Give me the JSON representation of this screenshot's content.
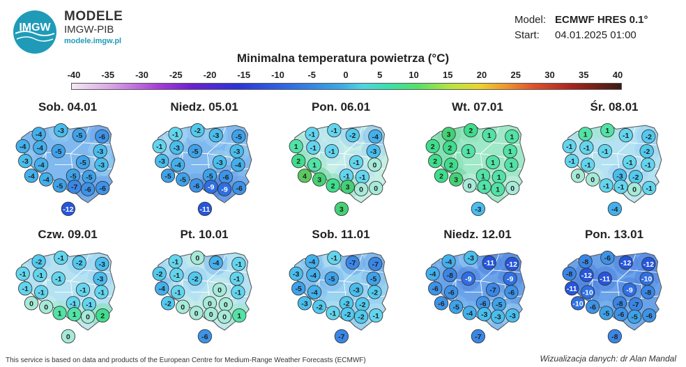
{
  "brand": {
    "name": "MODELE",
    "org": "IMGW-PIB",
    "url": "modele.imgw.pl",
    "logo_text": "IMGW"
  },
  "model": {
    "model_label": "Model:",
    "model_value": "ECMWF HRES 0.1°",
    "start_label": "Start:",
    "start_value": "04.01.2025 01:00"
  },
  "title": "Minimalna temperatura powietrza (°C)",
  "scale": {
    "min": -40,
    "max": 40,
    "ticks": [
      "-40",
      "-35",
      "-30",
      "-25",
      "-20",
      "-15",
      "-10",
      "-5",
      "0",
      "5",
      "10",
      "15",
      "20",
      "25",
      "30",
      "35",
      "40"
    ]
  },
  "days": [
    {
      "label": "Sob. 04.01",
      "values": [
        "-4",
        "-3",
        "-5",
        "-6",
        "-4",
        "-4",
        "-5",
        "-3",
        "-3",
        "-4",
        "-5",
        "-3",
        "-4",
        "-4",
        "-5",
        "-5",
        "-5",
        "-7",
        "-6",
        "-6",
        "-12"
      ]
    },
    {
      "label": "Niedz. 05.01",
      "values": [
        "-1",
        "-2",
        "-3",
        "-5",
        "-1",
        "-3",
        "-5",
        "-3",
        "-3",
        "-4",
        "-3",
        "-4",
        "-5",
        "-5",
        "-5",
        "-6",
        "-6",
        "-9",
        "-9",
        "-6",
        "-11"
      ]
    },
    {
      "label": "Pon. 06.01",
      "values": [
        "-1",
        "-1",
        "-2",
        "-4",
        "1",
        "-1",
        "-1",
        "-3",
        "2",
        "1",
        "-1",
        "0",
        "4",
        "3",
        "-1",
        "-1",
        "2",
        "3",
        "0",
        "0",
        "3"
      ]
    },
    {
      "label": "Wt. 07.01",
      "values": [
        "3",
        "2",
        "1",
        "1",
        "2",
        "2",
        "1",
        "1",
        "2",
        "2",
        "1",
        "1",
        "2",
        "3",
        "1",
        "1",
        "0",
        "1",
        "1",
        "0",
        "-3"
      ]
    },
    {
      "label": "Śr. 08.01",
      "values": [
        "1",
        "1",
        "-1",
        "-2",
        "-1",
        "-1",
        "-1",
        "-2",
        "-1",
        "-1",
        "-1",
        "-1",
        "0",
        "0",
        "-3",
        "-2",
        "-1",
        "-1",
        "0",
        "-1",
        "-4"
      ]
    },
    {
      "label": "Czw. 09.01",
      "values": [
        "-2",
        "-1",
        "-2",
        "-3",
        "-1",
        "-1",
        "-1",
        "-3",
        "-1",
        "-1",
        "-1",
        "-1",
        "0",
        "0",
        "-1",
        "-1",
        "1",
        "1",
        "0",
        "2",
        "0"
      ]
    },
    {
      "label": "Pt. 10.01",
      "values": [
        "-1",
        "0",
        "-4",
        "-1",
        "-2",
        "-1",
        "-2",
        "-1",
        "-4",
        "-1",
        "0",
        "-1",
        "-2",
        "0",
        "0",
        "0",
        "0",
        "0",
        "0",
        "1",
        "-6"
      ]
    },
    {
      "label": "Sob. 11.01",
      "values": [
        "-4",
        "-1",
        "-7",
        "-7",
        "-3",
        "-4",
        "-5",
        "-5",
        "-5",
        "-4",
        "-3",
        "-2",
        "-3",
        "-2",
        "-2",
        "-2",
        "-1",
        "-2",
        "-2",
        "-1",
        "-7"
      ]
    },
    {
      "label": "Niedz. 12.01",
      "values": [
        "-4",
        "-3",
        "-11",
        "-12",
        "-4",
        "-8",
        "-9",
        "-9",
        "-6",
        "-6",
        "-7",
        "-6",
        "-6",
        "-5",
        "-6",
        "-5",
        "-4",
        "-3",
        "-3",
        "-3",
        "-7"
      ]
    },
    {
      "label": "Pon. 13.01",
      "values": [
        "-8",
        "-6",
        "-12",
        "-12",
        "-8",
        "-12",
        "-11",
        "-10",
        "-11",
        "-10",
        "-9",
        "-8",
        "-10",
        "-6",
        "-8",
        "-7",
        "-5",
        "-6",
        "-5",
        "-6",
        "-8"
      ]
    }
  ],
  "footer": {
    "left": "This service is based on data and products of the European Centre for Medium-Range Weather Forecasts (ECMWF)",
    "right": "Wizualizacja danych: dr Alan Mandal"
  }
}
